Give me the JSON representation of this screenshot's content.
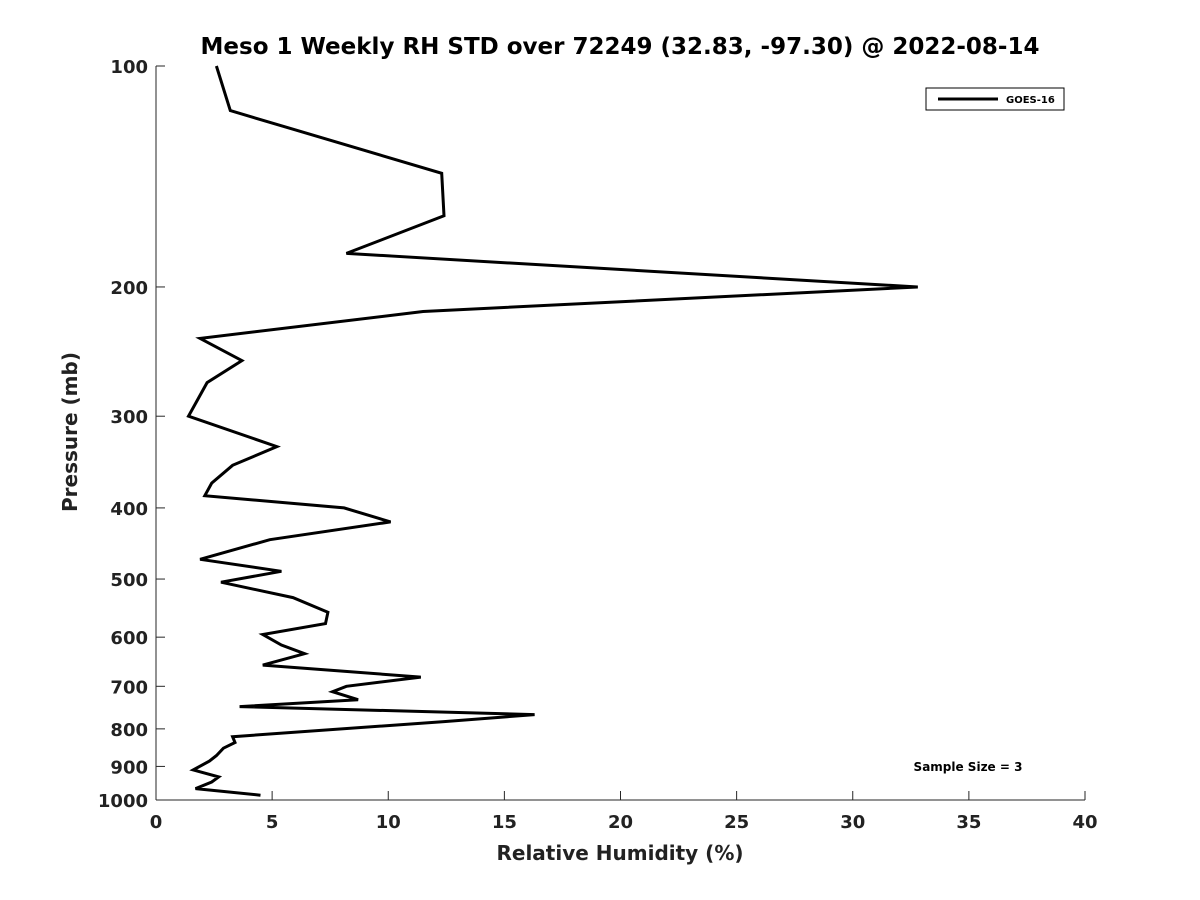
{
  "chart_data": {
    "type": "line",
    "title": "Meso 1 Weekly RH STD over 72249 (32.83, -97.30) @ 2022-08-14",
    "xlabel": "Relative Humidity (%)",
    "ylabel": "Pressure (mb)",
    "xlim": [
      0,
      40
    ],
    "ylim": [
      100,
      1000
    ],
    "y_scale": "log",
    "y_reversed": true,
    "x_ticks": [
      0,
      5,
      10,
      15,
      20,
      25,
      30,
      35,
      40
    ],
    "y_ticks": [
      100,
      200,
      300,
      400,
      500,
      600,
      700,
      800,
      900,
      1000
    ],
    "grid": false,
    "legend": {
      "position": "top-right",
      "entries": [
        "GOES-16"
      ]
    },
    "annotation": "Sample Size = 3",
    "series": [
      {
        "name": "GOES-16",
        "color": "#000000",
        "points": [
          [
            2.6,
            100
          ],
          [
            3.2,
            115
          ],
          [
            12.3,
            140
          ],
          [
            12.4,
            160
          ],
          [
            8.2,
            180
          ],
          [
            32.8,
            200
          ],
          [
            11.5,
            216
          ],
          [
            1.9,
            235
          ],
          [
            3.7,
            252
          ],
          [
            2.2,
            270
          ],
          [
            1.4,
            300
          ],
          [
            5.2,
            330
          ],
          [
            3.3,
            350
          ],
          [
            2.4,
            370
          ],
          [
            2.1,
            385
          ],
          [
            8.1,
            400
          ],
          [
            10.1,
            418
          ],
          [
            4.9,
            442
          ],
          [
            1.9,
            470
          ],
          [
            5.4,
            488
          ],
          [
            2.8,
            505
          ],
          [
            5.9,
            530
          ],
          [
            7.4,
            555
          ],
          [
            7.3,
            575
          ],
          [
            4.6,
            595
          ],
          [
            5.4,
            615
          ],
          [
            6.4,
            632
          ],
          [
            4.6,
            655
          ],
          [
            11.4,
            680
          ],
          [
            8.2,
            700
          ],
          [
            7.6,
            712
          ],
          [
            8.7,
            730
          ],
          [
            3.6,
            746
          ],
          [
            16.3,
            765
          ],
          [
            12.4,
            782
          ],
          [
            3.3,
            820
          ],
          [
            3.4,
            835
          ],
          [
            2.9,
            850
          ],
          [
            2.6,
            870
          ],
          [
            2.3,
            885
          ],
          [
            1.6,
            910
          ],
          [
            2.7,
            930
          ],
          [
            2.4,
            945
          ],
          [
            1.7,
            965
          ],
          [
            4.5,
            985
          ]
        ]
      }
    ]
  }
}
